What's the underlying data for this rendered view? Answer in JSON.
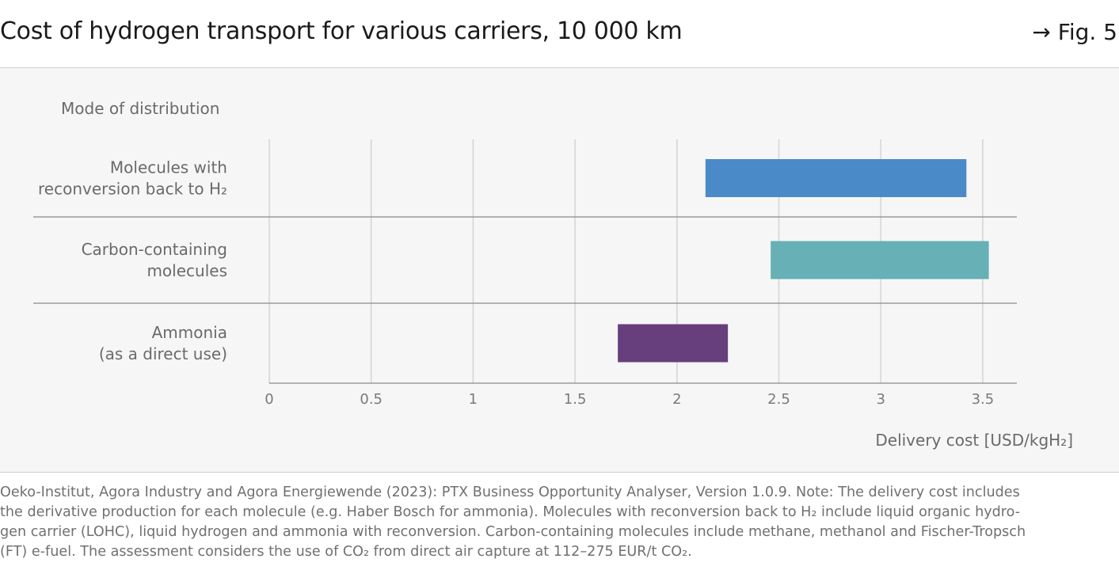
{
  "header": {
    "title": "Cost of hydrogen transport for various carriers, 10 000 km",
    "fig_ref": "→ Fig. 5"
  },
  "chart_data": {
    "type": "bar",
    "orientation": "horizontal-range",
    "category_axis_title": "Mode of distribution",
    "xlabel": "Delivery cost [USD/kgH₂]",
    "xlim": [
      0,
      3.6
    ],
    "xticks": [
      0,
      0.5,
      1,
      1.5,
      2,
      2.5,
      3,
      3.5
    ],
    "xtick_labels": [
      "0",
      "0.5",
      "1",
      "1.5",
      "2",
      "2.5",
      "3",
      "3.5"
    ],
    "grid": true,
    "categories": [
      {
        "label_lines": [
          "Molecules with",
          "reconversion back to H₂"
        ],
        "low": 2.14,
        "high": 3.42,
        "color": "#4a8ac9"
      },
      {
        "label_lines": [
          "Carbon-containing",
          "molecules"
        ],
        "low": 2.46,
        "high": 3.53,
        "color": "#66b0b6"
      },
      {
        "label_lines": [
          "Ammonia",
          "(as a direct use)"
        ],
        "low": 1.71,
        "high": 2.25,
        "color": "#663f7c"
      }
    ]
  },
  "footnote": {
    "lines": [
      "Oeko-Institut, Agora Industry and Agora Energiewende (2023): PTX Business Opportunity Analyser, Version 1.0.9. Note: The delivery cost includes",
      "the derivative production for each molecule (e.g. Haber Bosch for ammonia). Molecules with reconversion back to H₂ include liquid organic hydro-",
      "gen carrier (LOHC), liquid hydrogen and ammonia with reconversion. Carbon-containing molecules include methane, methanol and Fischer-Tropsch",
      "(FT) e-fuel. The assessment considers the use of CO₂ from direct air capture at 112–275 EUR/t CO₂."
    ]
  }
}
